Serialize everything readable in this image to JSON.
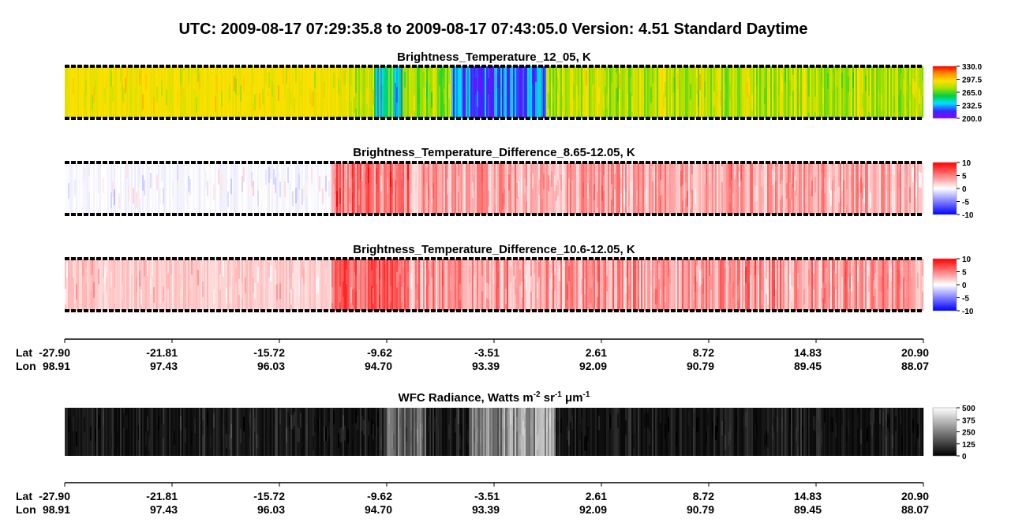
{
  "title": "UTC:  2009-08-17   07:29:35.8  to  2009-08-17   07:43:05.0   Version: 4.51  Standard Daytime",
  "chart_data": [
    {
      "type": "heatmap",
      "title": "Brightness_Temperature_12_05, K",
      "clim": [
        200,
        330
      ],
      "cticks": [
        {
          "value": 330,
          "label": "330.0"
        },
        {
          "value": 297.5,
          "label": "297.5"
        },
        {
          "value": 265,
          "label": "265.0"
        },
        {
          "value": 232.5,
          "label": "232.5"
        },
        {
          "value": 200,
          "label": "200.0"
        }
      ],
      "colormap": [
        "#8a00ff",
        "#3030ff",
        "#00e0ff",
        "#00d040",
        "#a0e000",
        "#ffe000",
        "#ff9000",
        "#ff0000"
      ]
    },
    {
      "type": "heatmap",
      "title": "Brightness_Temperature_Difference_8.65-12.05, K",
      "clim": [
        -10,
        10
      ],
      "cticks": [
        10,
        5,
        0,
        -5,
        -10
      ],
      "colormap": [
        "#0000ff",
        "#ffffff",
        "#ff0000"
      ]
    },
    {
      "type": "heatmap",
      "title": "Brightness_Temperature_Difference_10.6-12.05, K",
      "clim": [
        -10,
        10
      ],
      "cticks": [
        10,
        5,
        0,
        -5,
        -10
      ],
      "colormap": [
        "#0000ff",
        "#ffffff",
        "#ff0000"
      ]
    },
    {
      "type": "heatmap",
      "title_parts": [
        "WFC Radiance, Watts m",
        "-2",
        " sr",
        "-1",
        " μm",
        "-1"
      ],
      "clim": [
        0,
        500
      ],
      "cticks": [
        500,
        375,
        250,
        125,
        0
      ],
      "colormap": [
        "#000000",
        "#ffffff"
      ]
    }
  ],
  "axes": [
    {
      "lat_name": "Lat",
      "lon_name": "Lon",
      "lat": [
        "-27.90",
        "-21.81",
        "-15.72",
        "-9.62",
        "-3.51",
        "2.61",
        "8.72",
        "14.83",
        "20.90"
      ],
      "lon": [
        "98.91",
        "97.43",
        "96.03",
        "94.70",
        "93.39",
        "92.09",
        "90.79",
        "89.45",
        "88.07"
      ]
    },
    {
      "lat_name": "Lat",
      "lon_name": "Lon",
      "lat": [
        "-27.90",
        "-21.81",
        "-15.72",
        "-9.62",
        "-3.51",
        "2.61",
        "8.72",
        "14.83",
        "20.90"
      ],
      "lon": [
        "98.91",
        "97.43",
        "96.03",
        "94.70",
        "93.39",
        "92.09",
        "90.79",
        "89.45",
        "88.07"
      ]
    }
  ]
}
